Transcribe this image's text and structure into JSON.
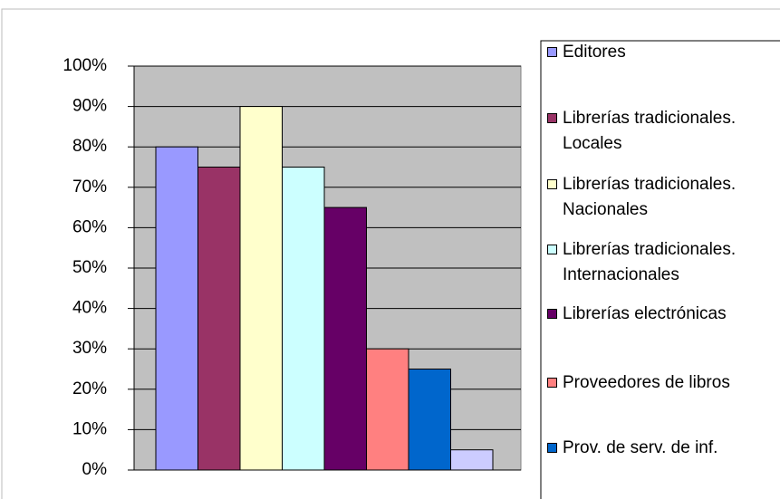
{
  "chart_data": {
    "type": "bar",
    "series": [
      {
        "name": "Editores",
        "color": "#9999ff",
        "values": [
          80
        ]
      },
      {
        "name": "Librerías tradicionales. Locales",
        "color": "#993366",
        "values": [
          75
        ]
      },
      {
        "name": "Librerías tradicionales. Nacionales",
        "color": "#ffffcc",
        "values": [
          90
        ]
      },
      {
        "name": "Librerías tradicionales. Internacionales",
        "color": "#ccffff",
        "values": [
          75
        ]
      },
      {
        "name": "Librerías electrónicas",
        "color": "#660066",
        "values": [
          65
        ]
      },
      {
        "name": "Proveedores de libros",
        "color": "#ff8080",
        "values": [
          30
        ]
      },
      {
        "name": "Prov. de serv. de inf.",
        "color": "#0066cc",
        "values": [
          25
        ]
      },
      {
        "name": null,
        "color": "#ccccff",
        "values": [
          5
        ]
      }
    ],
    "ylim": [
      0,
      100
    ],
    "yticks": [
      {
        "value": 0,
        "label": "0%"
      },
      {
        "value": 10,
        "label": "10%"
      },
      {
        "value": 20,
        "label": "20%"
      },
      {
        "value": 30,
        "label": "30%"
      },
      {
        "value": 40,
        "label": "40%"
      },
      {
        "value": 50,
        "label": "50%"
      },
      {
        "value": 60,
        "label": "60%"
      },
      {
        "value": 70,
        "label": "70%"
      },
      {
        "value": 80,
        "label": "80%"
      },
      {
        "value": 90,
        "label": "90%"
      },
      {
        "value": 100,
        "label": "100%"
      }
    ],
    "grid": true,
    "plot_background": "#c0c0c0",
    "legend": "right"
  }
}
